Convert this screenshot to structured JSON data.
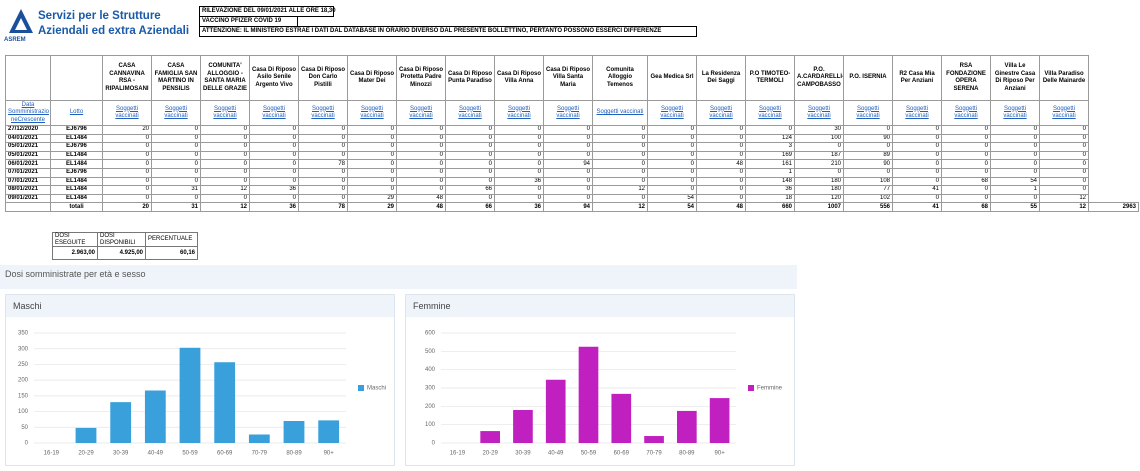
{
  "header": {
    "logo": "ASREM",
    "title_line1": "Servizi per le Strutture",
    "title_line2": "Aziendali ed extra Aziendali",
    "notices": [
      "RILEVAZIONE DEL 09/01/2021 ALLE ORE 18,30",
      "VACCINO PFIZER COVID 19",
      "ATTENZIONE: IL MINISTERO ESTRAE I DATI DAL DATABASE IN ORARIO DIVERSO DAL PRESENTE BOLLETTINO, PERTANTO POSSONO ESSERCI DIFFERENZE"
    ]
  },
  "table": {
    "columns": [
      "CASA CANNAVINA RSA - RIPALIMOSANI",
      "CASA FAMIGLIA SAN MARTINO IN PENSILIS",
      "COMUNITA' ALLOGGIO - SANTA MARIA DELLE GRAZIE",
      "Casa Di Riposo Asilo Senile Argento Vivo",
      "Casa Di Riposo Don Carlo Pistilli",
      "Casa Di Riposo Mater Dei",
      "Casa Di Riposo Protetta Padre Minozzi",
      "Casa Di Riposo Punta Paradiso",
      "Casa Di Riposo Villa Anna",
      "Casa Di Riposo Villa Santa Maria",
      "Comunita Alloggio Temenos",
      "Gea Medica Srl",
      "La Residenza Dei Saggi",
      "P.O TIMOTEO-TERMOLI",
      "P.O. A.CARDARELLI-CAMPOBASSO",
      "P.O. ISERNIA",
      "R2 Casa Mia Per Anziani",
      "RSA FONDAZIONE OPERA SERENA",
      "Villa Le Ginestre Casa Di Riposo Per Anziani",
      "Villa Paradiso Delle Mainarde"
    ],
    "date_header": "Data Somministrazio neCrescente",
    "lot_header": "Lotto",
    "subheaders": [
      "Soggetti vaccinati",
      "Soggetti vaccinati",
      "Soggetti vaccinati",
      "Soggetti vaccinati",
      "Soggetti vaccinati",
      "Soggetti vaccinati",
      "Soggetti vaccinati",
      "Soggetti vaccinati",
      "Soggetti vaccinati",
      "Soggetti vaccinati",
      "Soggetti vaccinati",
      "Soggetti vaccinati",
      "Soggetti vaccinati",
      "Soggetti vaccinati",
      "Soggetti vaccinati",
      "Soggetti vaccinati",
      "Soggetti vaccinati",
      "Soggetti vaccinati",
      "Soggetti vaccinati",
      "Soggetti vaccinati"
    ],
    "rows": [
      {
        "date": "27/12/2020",
        "lot": "EJ6796",
        "values": [
          20,
          0,
          0,
          0,
          0,
          0,
          0,
          0,
          0,
          0,
          0,
          0,
          0,
          0,
          30,
          0,
          0,
          0,
          0,
          0
        ]
      },
      {
        "date": "04/01/2021",
        "lot": "EL1484",
        "values": [
          0,
          0,
          0,
          0,
          0,
          0,
          0,
          0,
          0,
          0,
          0,
          0,
          0,
          124,
          100,
          90,
          0,
          0,
          0,
          0
        ]
      },
      {
        "date": "05/01/2021",
        "lot": "EJ6796",
        "values": [
          0,
          0,
          0,
          0,
          0,
          0,
          0,
          0,
          0,
          0,
          0,
          0,
          0,
          3,
          0,
          0,
          0,
          0,
          0,
          0
        ]
      },
      {
        "date": "05/01/2021",
        "lot": "EL1484",
        "values": [
          0,
          0,
          0,
          0,
          0,
          0,
          0,
          0,
          0,
          0,
          0,
          0,
          0,
          169,
          187,
          89,
          0,
          0,
          0,
          0
        ]
      },
      {
        "date": "06/01/2021",
        "lot": "EL1484",
        "values": [
          0,
          0,
          0,
          0,
          78,
          0,
          0,
          0,
          0,
          94,
          0,
          0,
          48,
          161,
          210,
          90,
          0,
          0,
          0,
          0
        ]
      },
      {
        "date": "07/01/2021",
        "lot": "EJ6796",
        "values": [
          0,
          0,
          0,
          0,
          0,
          0,
          0,
          0,
          0,
          0,
          0,
          0,
          0,
          1,
          0,
          0,
          0,
          0,
          0,
          0
        ]
      },
      {
        "date": "07/01/2021",
        "lot": "EL1484",
        "values": [
          0,
          0,
          0,
          0,
          0,
          0,
          0,
          0,
          36,
          0,
          0,
          0,
          0,
          148,
          180,
          108,
          0,
          68,
          54,
          0
        ]
      },
      {
        "date": "08/01/2021",
        "lot": "EL1484",
        "values": [
          0,
          31,
          12,
          36,
          0,
          0,
          0,
          66,
          0,
          0,
          12,
          0,
          0,
          36,
          180,
          77,
          41,
          0,
          1,
          0
        ]
      },
      {
        "date": "09/01/2021",
        "lot": "EL1484",
        "values": [
          0,
          0,
          0,
          0,
          0,
          29,
          48,
          0,
          0,
          0,
          0,
          54,
          0,
          18,
          120,
          102,
          0,
          0,
          0,
          12
        ]
      }
    ],
    "totals": {
      "label": "totali",
      "values": [
        20,
        31,
        12,
        36,
        78,
        29,
        48,
        66,
        36,
        94,
        12,
        54,
        48,
        660,
        1007,
        556,
        41,
        68,
        55,
        12
      ],
      "grand_total": 2963
    }
  },
  "summary": {
    "headers": [
      "DOSI ESEGUITE",
      "DOSI DISPONIBILI",
      "PERCENTUALE"
    ],
    "values": [
      "2.963,00",
      "4.925,00",
      "60,16"
    ]
  },
  "section_title": "Dosi somministrate per età e sesso",
  "chart_data": [
    {
      "type": "bar",
      "title": "Maschi",
      "categories": [
        "16-19",
        "20-29",
        "30-39",
        "40-49",
        "50-59",
        "60-69",
        "70-79",
        "80-89",
        "90+"
      ],
      "series": [
        {
          "name": "Maschi",
          "color": "#3aa0dc",
          "values": [
            0,
            48,
            130,
            167,
            303,
            257,
            27,
            70,
            72
          ]
        }
      ],
      "ylim": [
        0,
        350
      ],
      "yticks": [
        0,
        50,
        100,
        150,
        200,
        250,
        300,
        350
      ],
      "grid": true,
      "legend": "right"
    },
    {
      "type": "bar",
      "title": "Femmine",
      "categories": [
        "16-19",
        "20-29",
        "30-39",
        "40-49",
        "50-59",
        "60-69",
        "70-79",
        "80-89",
        "90+"
      ],
      "series": [
        {
          "name": "Femmine",
          "color": "#c020c0",
          "values": [
            0,
            65,
            180,
            345,
            525,
            268,
            38,
            175,
            245
          ]
        }
      ],
      "ylim": [
        0,
        600
      ],
      "yticks": [
        0,
        100,
        200,
        300,
        400,
        500,
        600
      ],
      "grid": true,
      "legend": "right"
    }
  ]
}
